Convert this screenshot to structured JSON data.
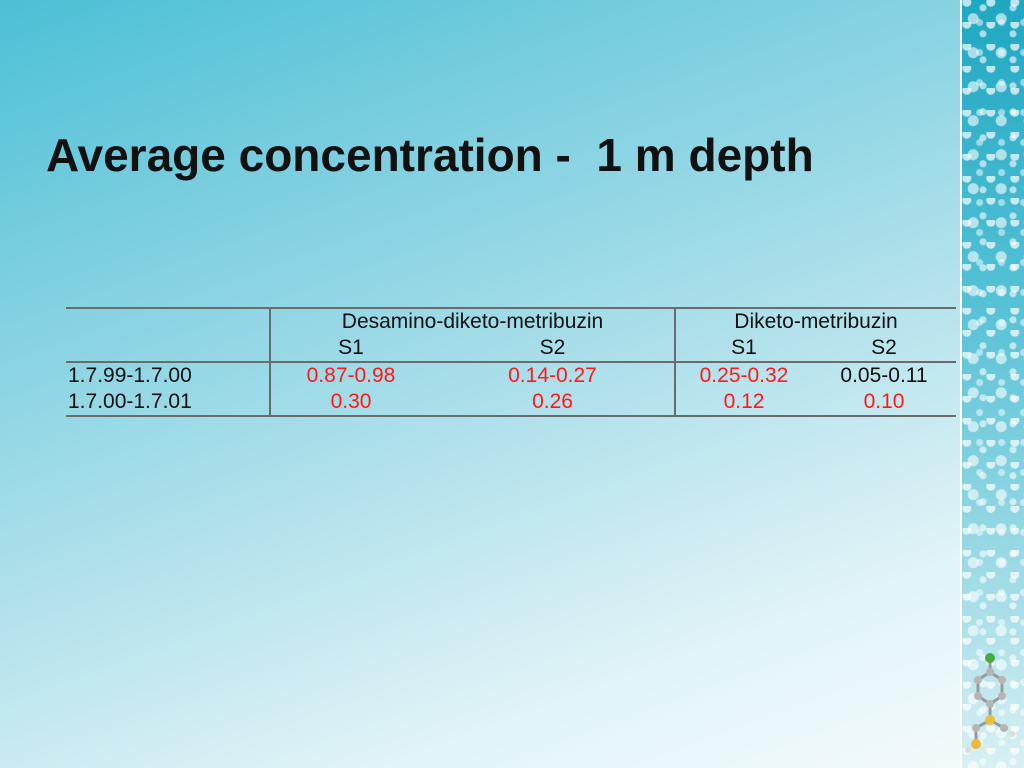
{
  "slide": {
    "title": "Average concentration -  1 m depth"
  },
  "table": {
    "header": {
      "corner": "",
      "groups": [
        {
          "name": "Desamino-diketo-metribuzin",
          "sub": [
            "S1",
            "S2"
          ]
        },
        {
          "name": "Diketo-metribuzin",
          "sub": [
            "S1",
            "S2"
          ]
        }
      ]
    },
    "rows": [
      {
        "label": "1.7.99-1.7.00",
        "group1": [
          "0.87-0.98",
          "0.14-0.27"
        ],
        "group2": [
          "0.25-0.32",
          "0.05-0.11"
        ]
      },
      {
        "label": "1.7.00-1.7.01",
        "group1": [
          "0.30",
          "0.26"
        ],
        "group2": [
          "0.12",
          "0.10"
        ]
      }
    ],
    "colors": {
      "highlight": "#ff1a1a",
      "normal": "#111111"
    }
  },
  "decoration": {
    "side_strip": "water-droplets-strip",
    "molecule_icon": "molecule-icon"
  }
}
